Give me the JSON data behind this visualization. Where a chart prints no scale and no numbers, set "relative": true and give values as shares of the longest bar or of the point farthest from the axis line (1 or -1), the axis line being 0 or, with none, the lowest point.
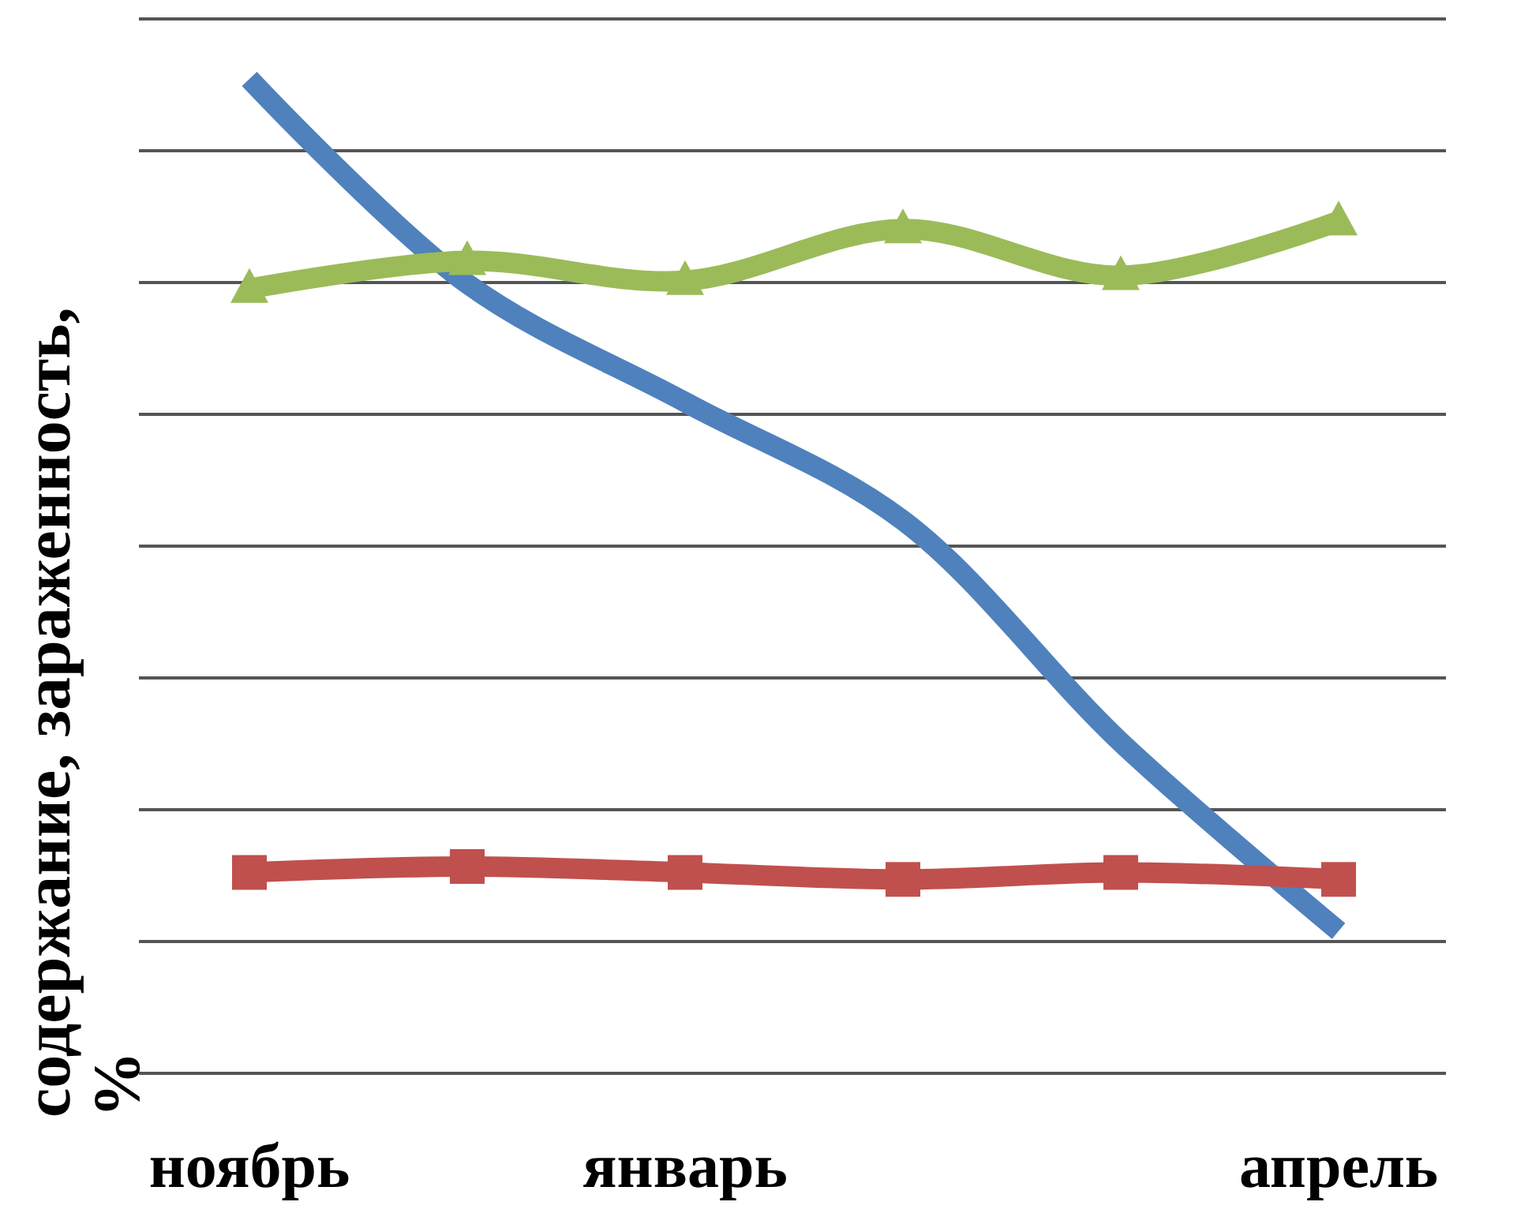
{
  "chart_data": {
    "type": "line",
    "relative": true,
    "ylabel": "содержание, зараженность, %",
    "categories": [
      "ноябрь",
      null,
      "январь",
      null,
      null,
      "апрель"
    ],
    "grid": "y",
    "series": [
      {
        "color": "#4f81bd",
        "marker": "none",
        "values": [
          1.0,
          0.794,
          0.675,
          0.556,
          0.333,
          0.143
        ]
      },
      {
        "color": "#9bbb59",
        "marker": "triangle",
        "values": [
          0.789,
          0.817,
          0.797,
          0.849,
          0.802,
          0.857
        ]
      },
      {
        "color": "#c0504d",
        "marker": "square",
        "values": [
          0.202,
          0.208,
          0.202,
          0.195,
          0.202,
          0.195
        ]
      }
    ]
  }
}
